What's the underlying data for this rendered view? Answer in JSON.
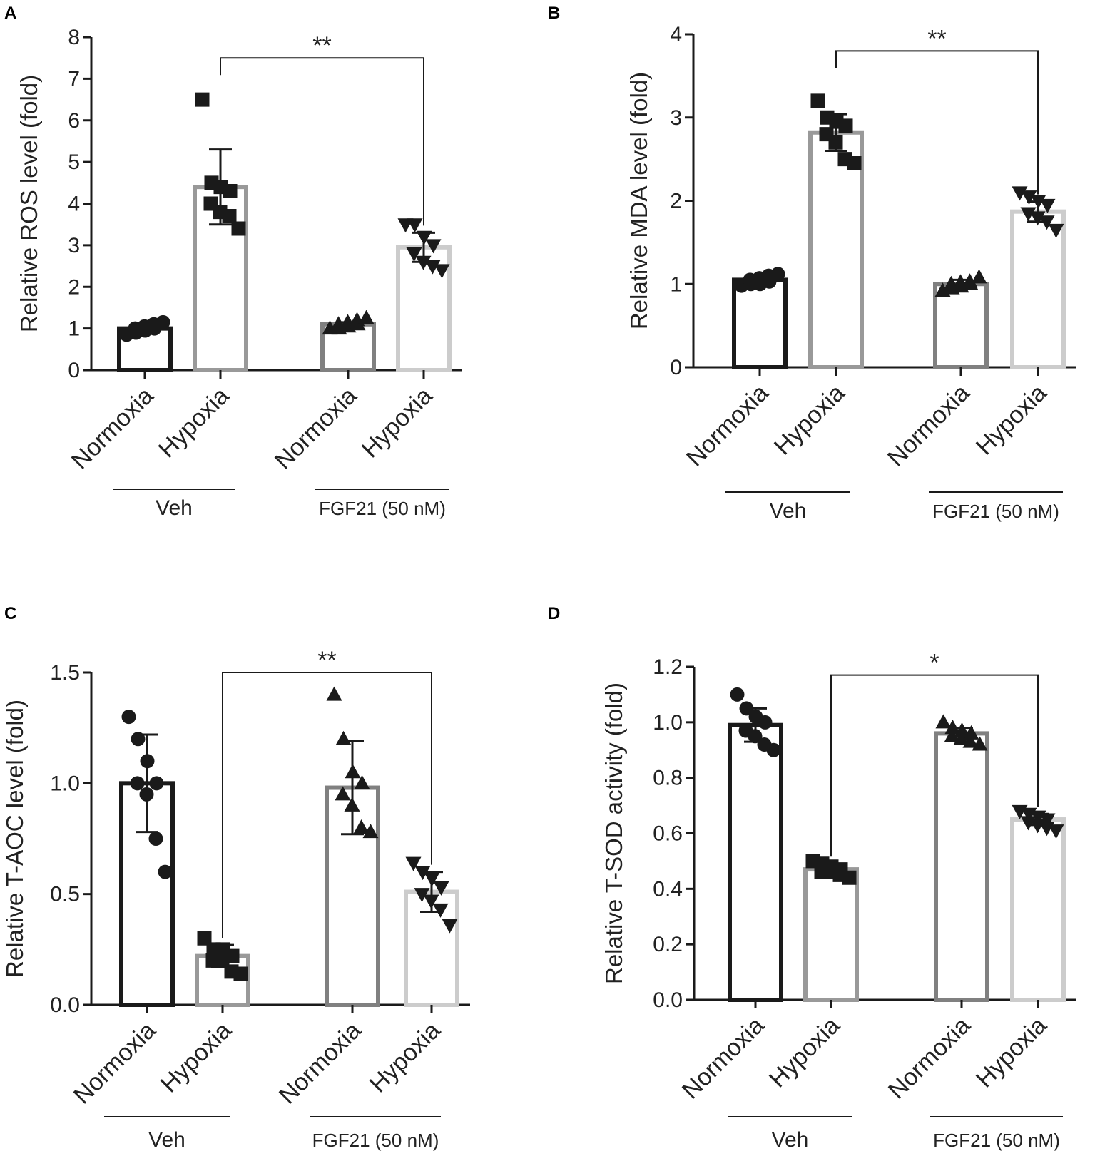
{
  "figure": {
    "colors": {
      "black": "#1a1a1a",
      "veh_normoxia": "#1a1a1a",
      "veh_hypoxia": "#999999",
      "fgf_normoxia": "#808080",
      "fgf_hypoxia": "#cccccc",
      "marker": "#1a1a1a"
    },
    "groups": [
      "Veh",
      "FGF21 (50 nM)"
    ]
  },
  "chart_data": [
    {
      "panel": "A",
      "type": "bar",
      "ylabel": "Relative ROS level (fold)",
      "ylim": [
        0,
        8
      ],
      "yticks": [
        "0",
        "1",
        "2",
        "3",
        "4",
        "5",
        "6",
        "7",
        "8"
      ],
      "yticks_values": [
        0,
        1,
        2,
        3,
        4,
        5,
        6,
        7,
        8
      ],
      "categories": [
        "Normoxia",
        "Hypoxia",
        "Normoxia",
        "Hypoxia"
      ],
      "groups": [
        "Veh",
        "FGF21 (50 nM)"
      ],
      "series": [
        {
          "name": "Veh Normoxia",
          "mean": 1.0,
          "sd": 0.07,
          "marker": "circle",
          "points": [
            0.85,
            0.9,
            0.95,
            1.0,
            1.0,
            1.05,
            1.1,
            1.15
          ]
        },
        {
          "name": "Veh Hypoxia",
          "mean": 4.4,
          "sd": 0.9,
          "marker": "square",
          "points": [
            6.5,
            4.5,
            4.4,
            4.3,
            4.0,
            3.8,
            3.7,
            3.4
          ]
        },
        {
          "name": "FGF21 Normoxia",
          "mean": 1.1,
          "sd": 0.05,
          "marker": "triangle-up",
          "points": [
            1.0,
            1.0,
            1.05,
            1.1,
            1.1,
            1.15,
            1.2,
            1.25
          ]
        },
        {
          "name": "FGF21 Hypoxia",
          "mean": 2.95,
          "sd": 0.35,
          "marker": "triangle-down",
          "points": [
            3.5,
            3.5,
            3.2,
            3.0,
            2.8,
            2.6,
            2.5,
            2.4
          ]
        }
      ],
      "significance": {
        "label": "**",
        "from": 1,
        "to": 3,
        "y": 7.5
      }
    },
    {
      "panel": "B",
      "type": "bar",
      "ylabel": "Relative MDA level (fold)",
      "ylim": [
        0,
        4
      ],
      "yticks": [
        "0",
        "1",
        "2",
        "3",
        "4"
      ],
      "yticks_values": [
        0,
        1,
        2,
        3,
        4
      ],
      "categories": [
        "Normoxia",
        "Hypoxia",
        "Normoxia",
        "Hypoxia"
      ],
      "groups": [
        "Veh",
        "FGF21 (50 nM)"
      ],
      "series": [
        {
          "name": "Veh Normoxia",
          "mean": 1.05,
          "sd": 0.05,
          "marker": "circle",
          "points": [
            0.98,
            1.0,
            1.0,
            1.03,
            1.05,
            1.07,
            1.1,
            1.12
          ]
        },
        {
          "name": "Veh Hypoxia",
          "mean": 2.82,
          "sd": 0.22,
          "marker": "square",
          "points": [
            3.2,
            3.0,
            2.95,
            2.9,
            2.8,
            2.7,
            2.5,
            2.45
          ]
        },
        {
          "name": "FGF21 Normoxia",
          "mean": 1.0,
          "sd": 0.05,
          "marker": "triangle-up",
          "points": [
            0.92,
            0.95,
            0.97,
            1.0,
            1.0,
            1.02,
            1.03,
            1.08
          ]
        },
        {
          "name": "FGF21 Hypoxia",
          "mean": 1.87,
          "sd": 0.12,
          "marker": "triangle-down",
          "points": [
            2.1,
            2.05,
            2.0,
            1.95,
            1.85,
            1.8,
            1.75,
            1.65
          ]
        }
      ],
      "significance": {
        "label": "**",
        "from": 1,
        "to": 3,
        "y": 3.8
      }
    },
    {
      "panel": "C",
      "type": "bar",
      "ylabel": "Relative T-AOC level (fold)",
      "ylim": [
        0,
        1.5
      ],
      "yticks": [
        "0.0",
        "0.5",
        "1.0",
        "1.5"
      ],
      "yticks_values": [
        0,
        0.5,
        1.0,
        1.5
      ],
      "categories": [
        "Normoxia",
        "Hypoxia",
        "Normoxia",
        "Hypoxia"
      ],
      "groups": [
        "Veh",
        "FGF21 (50 nM)"
      ],
      "series": [
        {
          "name": "Veh Normoxia",
          "mean": 1.0,
          "sd": 0.22,
          "marker": "circle",
          "points": [
            1.3,
            1.2,
            1.1,
            1.0,
            1.0,
            0.95,
            0.75,
            0.6
          ]
        },
        {
          "name": "Veh Hypoxia",
          "mean": 0.22,
          "sd": 0.05,
          "marker": "square",
          "points": [
            0.3,
            0.25,
            0.25,
            0.22,
            0.2,
            0.2,
            0.15,
            0.14
          ]
        },
        {
          "name": "FGF21 Normoxia",
          "mean": 0.98,
          "sd": 0.21,
          "marker": "triangle-up",
          "points": [
            1.4,
            1.2,
            1.05,
            1.0,
            0.95,
            0.9,
            0.8,
            0.78
          ]
        },
        {
          "name": "FGF21 Hypoxia",
          "mean": 0.51,
          "sd": 0.09,
          "marker": "triangle-down",
          "points": [
            0.64,
            0.6,
            0.57,
            0.53,
            0.5,
            0.47,
            0.43,
            0.36
          ]
        }
      ],
      "significance": {
        "label": "**",
        "from": 1,
        "to": 3,
        "y": 1.5
      }
    },
    {
      "panel": "D",
      "type": "bar",
      "ylabel": "Relative T-SOD activity (fold)",
      "ylim": [
        0,
        1.2
      ],
      "yticks": [
        "0.0",
        "0.2",
        "0.4",
        "0.6",
        "0.8",
        "1.0",
        "1.2"
      ],
      "yticks_values": [
        0,
        0.2,
        0.4,
        0.6,
        0.8,
        1.0,
        1.2
      ],
      "categories": [
        "Normoxia",
        "Hypoxia",
        "Normoxia",
        "Hypoxia"
      ],
      "groups": [
        "Veh",
        "FGF21 (50 nM)"
      ],
      "series": [
        {
          "name": "Veh Normoxia",
          "mean": 0.99,
          "sd": 0.06,
          "marker": "circle",
          "points": [
            1.1,
            1.05,
            1.02,
            1.0,
            0.97,
            0.95,
            0.92,
            0.9
          ]
        },
        {
          "name": "Veh Hypoxia",
          "mean": 0.47,
          "sd": 0.02,
          "marker": "square",
          "points": [
            0.5,
            0.49,
            0.48,
            0.47,
            0.46,
            0.46,
            0.45,
            0.44
          ]
        },
        {
          "name": "FGF21 Normoxia",
          "mean": 0.96,
          "sd": 0.02,
          "marker": "triangle-up",
          "points": [
            1.0,
            0.98,
            0.97,
            0.96,
            0.95,
            0.94,
            0.93,
            0.92
          ]
        },
        {
          "name": "FGF21 Hypoxia",
          "mean": 0.65,
          "sd": 0.02,
          "marker": "triangle-down",
          "points": [
            0.68,
            0.67,
            0.66,
            0.65,
            0.64,
            0.63,
            0.62,
            0.61
          ]
        }
      ],
      "significance": {
        "label": "*",
        "from": 1,
        "to": 3,
        "y": 1.17
      }
    }
  ]
}
